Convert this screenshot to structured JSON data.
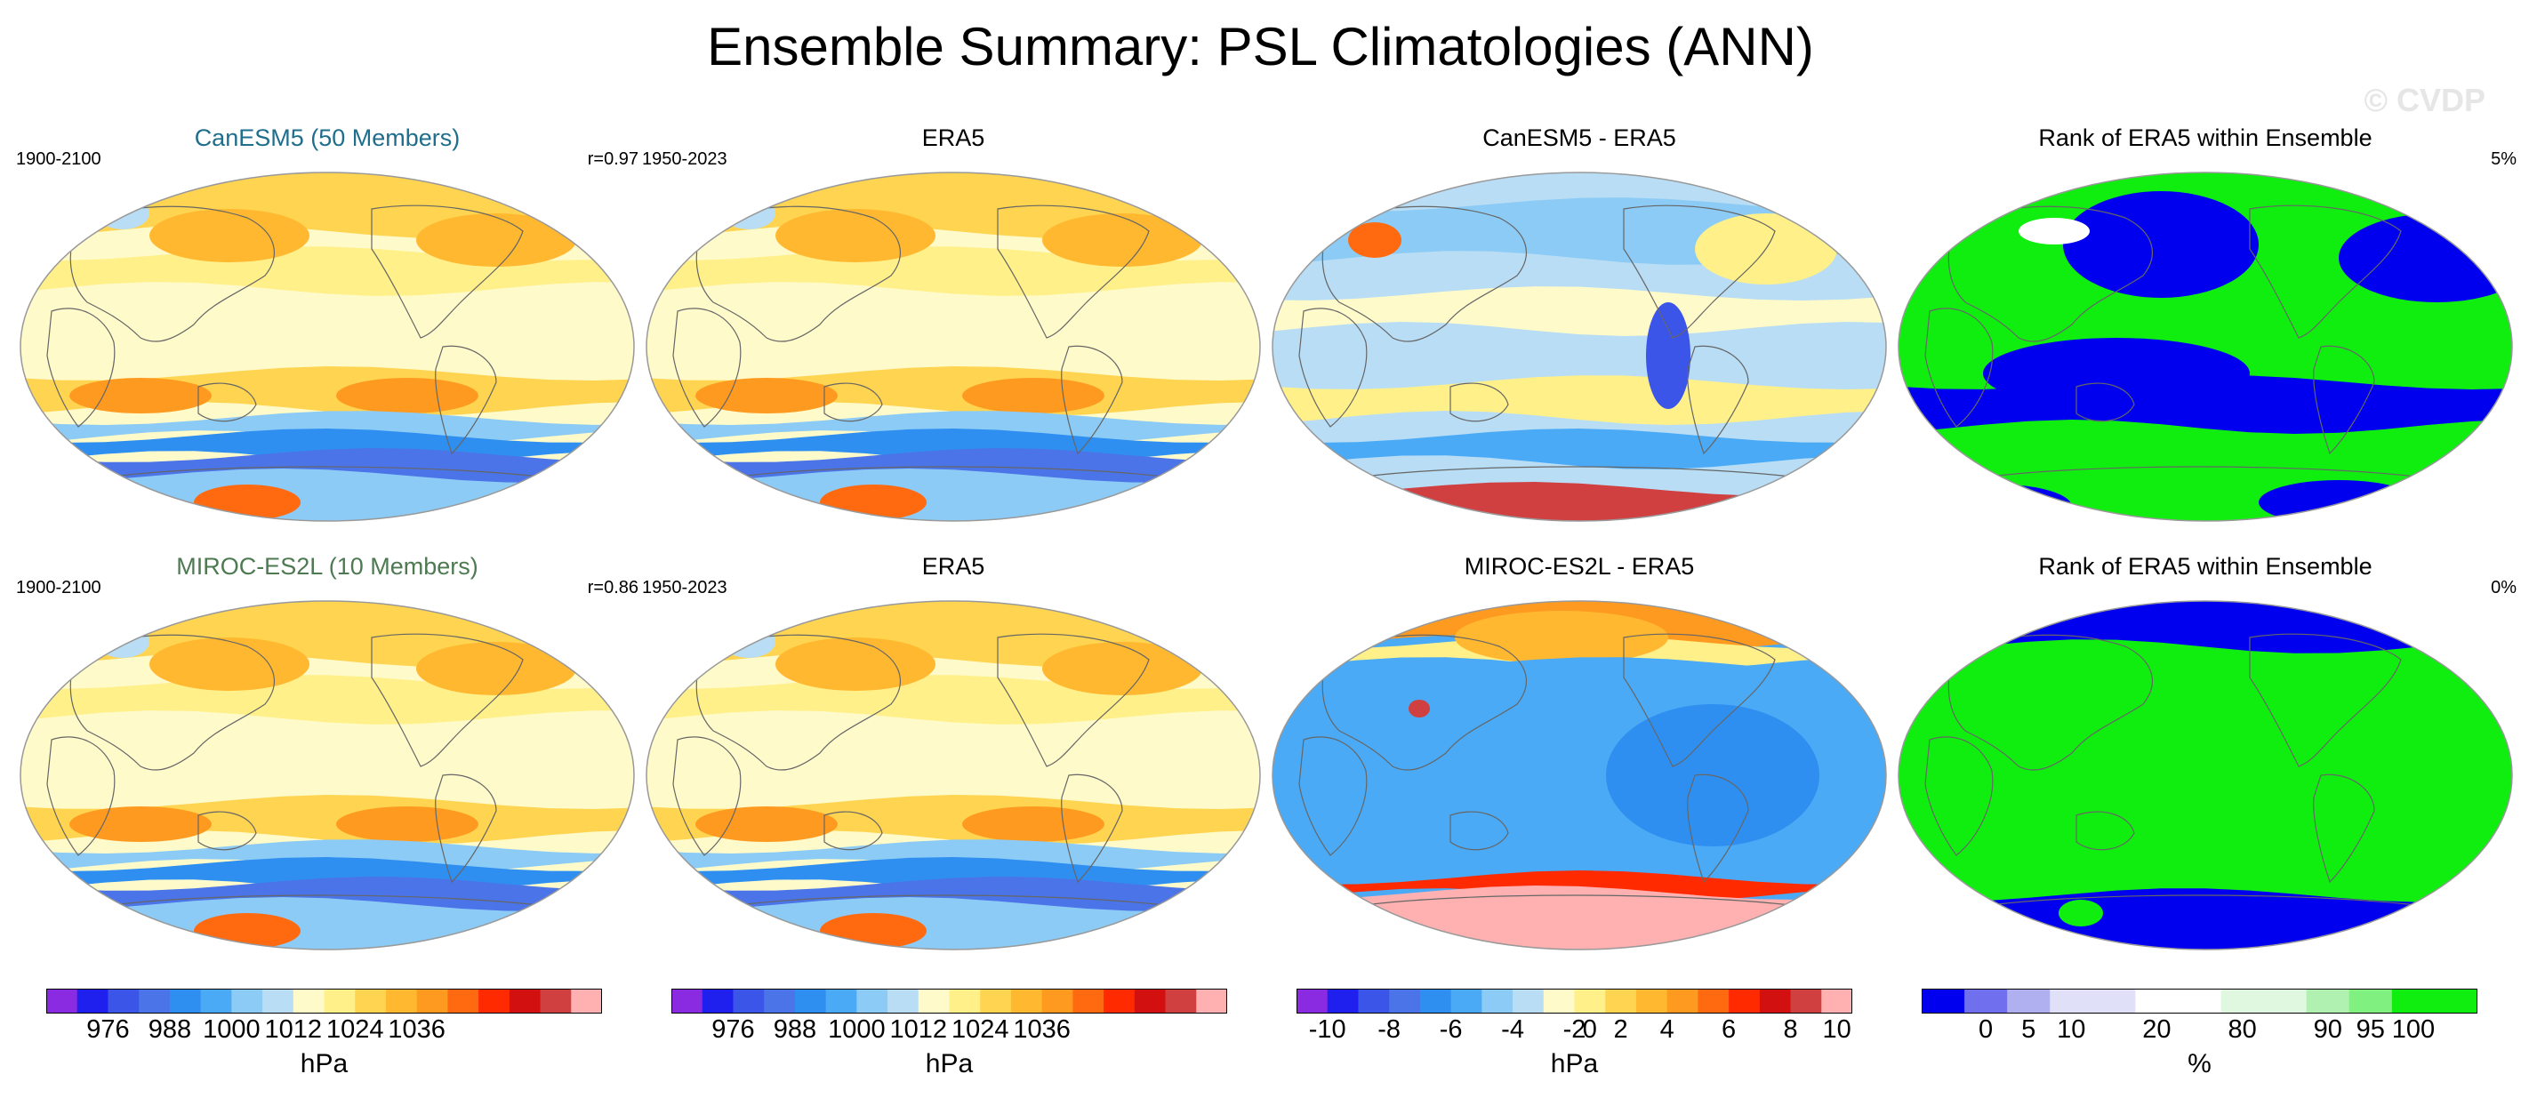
{
  "title": "Ensemble Summary: PSL Climatologies (ANN)",
  "watermark": "© CVDP",
  "colors": {
    "title_blue": "#1e6e8c",
    "title_green": "#4e7a52",
    "psl_palette": [
      "#8a2be2",
      "#2020ee",
      "#3a55e8",
      "#4a74e8",
      "#2f8ff0",
      "#4aaaf5",
      "#8ccbf5",
      "#b8ddf5",
      "#fffaca",
      "#fff08a",
      "#ffd450",
      "#ffb830",
      "#ff9a20",
      "#ff6a10",
      "#ff2a00",
      "#d21010",
      "#d04040",
      "#ffb0b0"
    ],
    "rank_palette": [
      "#0000ee",
      "#7070ee",
      "#b0b0f0",
      "#e0e0f8",
      "#ffffff",
      "#e0f8e0",
      "#b0f0b0",
      "#80f080",
      "#10ee10"
    ]
  },
  "panels": [
    {
      "title": "CanESM5 (50 Members)",
      "left": "1900-2100",
      "right": "r=0.97",
      "title_color": "blue",
      "icon": "world-map-psl-icon"
    },
    {
      "title": "ERA5",
      "left": "1950-2023",
      "right": "",
      "title_color": "black",
      "icon": "world-map-psl-icon"
    },
    {
      "title": "CanESM5 - ERA5",
      "left": "",
      "right": "",
      "title_color": "black",
      "icon": "world-map-diff-icon"
    },
    {
      "title": "Rank of ERA5 within Ensemble",
      "left": "",
      "right": "5%",
      "title_color": "black",
      "icon": "world-map-rank-icon"
    },
    {
      "title": "MIROC-ES2L (10 Members)",
      "left": "1900-2100",
      "right": "r=0.86",
      "title_color": "green",
      "icon": "world-map-psl-icon"
    },
    {
      "title": "ERA5",
      "left": "1950-2023",
      "right": "",
      "title_color": "black",
      "icon": "world-map-psl-icon"
    },
    {
      "title": "MIROC-ES2L - ERA5",
      "left": "",
      "right": "",
      "title_color": "black",
      "icon": "world-map-diff-icon"
    },
    {
      "title": "Rank of ERA5 within Ensemble",
      "left": "",
      "right": "0%",
      "title_color": "black",
      "icon": "world-map-rank-icon"
    }
  ],
  "colorbars": [
    {
      "unit": "hPa",
      "labels": [
        "976",
        "988",
        "1000",
        "1012",
        "1024",
        "1036"
      ]
    },
    {
      "unit": "hPa",
      "labels": [
        "976",
        "988",
        "1000",
        "1012",
        "1024",
        "1036"
      ]
    },
    {
      "unit": "hPa",
      "labels": [
        "-10",
        "-8",
        "-6",
        "-4",
        "-2",
        "0",
        "2",
        "4",
        "6",
        "8",
        "10"
      ]
    },
    {
      "unit": "%",
      "labels": [
        "0",
        "5",
        "10",
        "20",
        "80",
        "90",
        "95",
        "100"
      ]
    }
  ]
}
